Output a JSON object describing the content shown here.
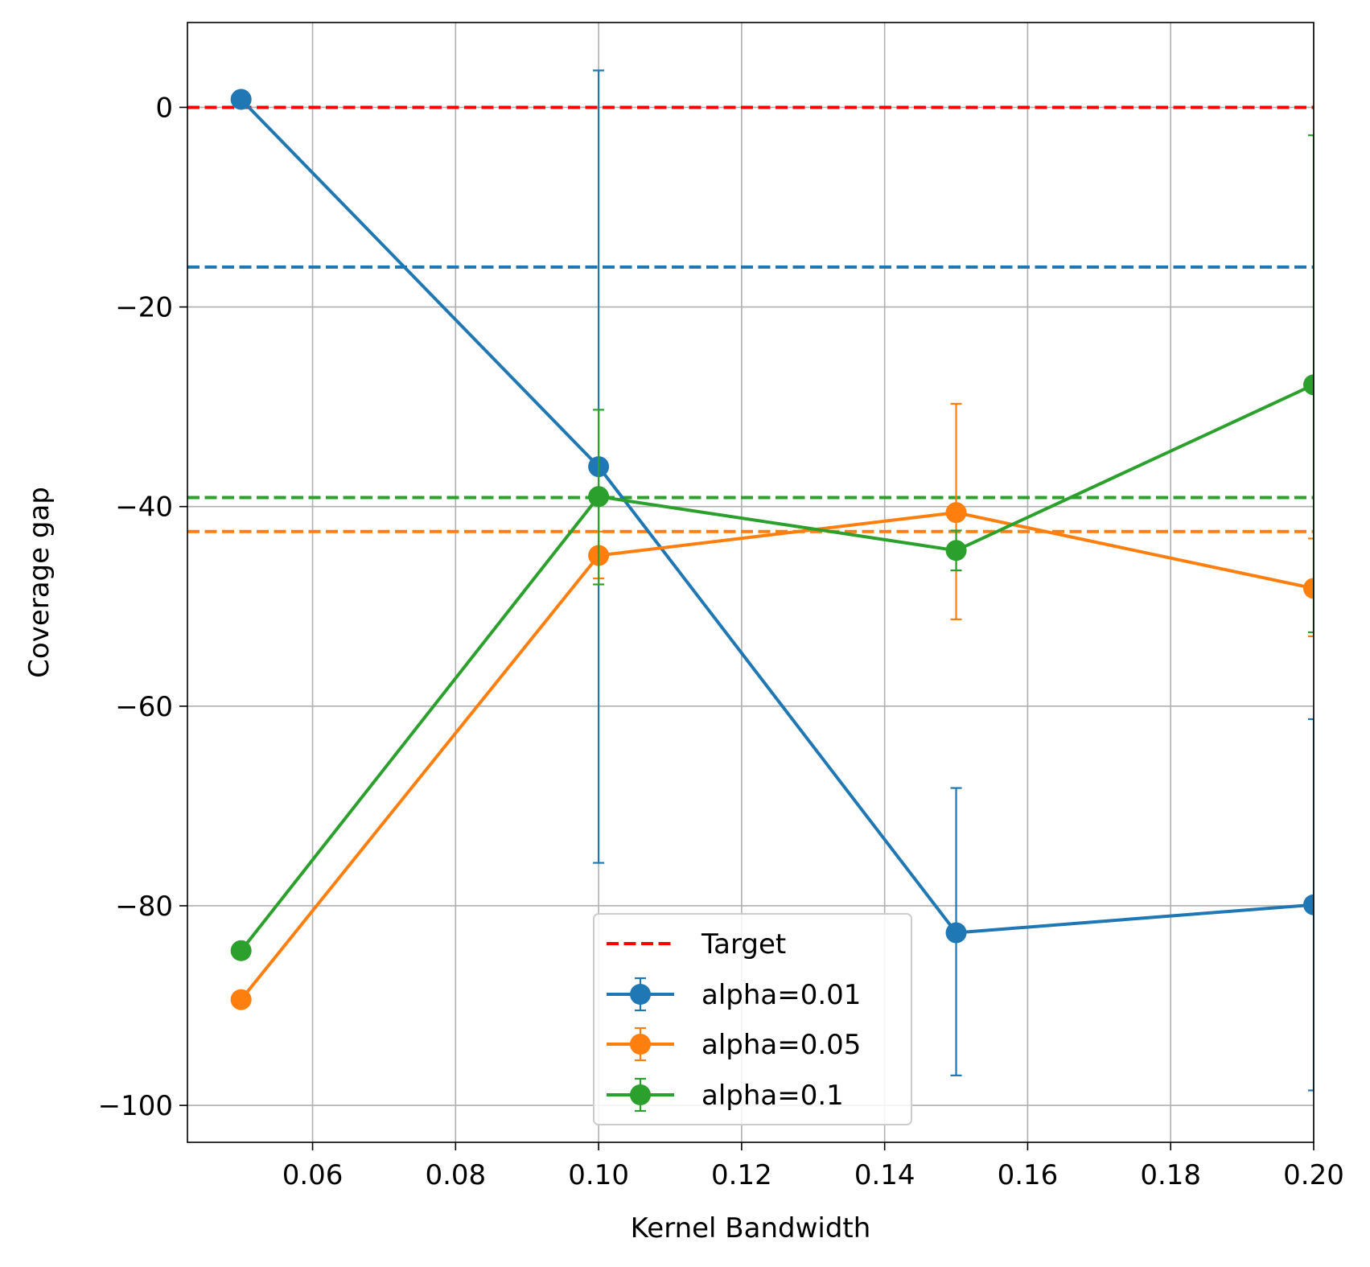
{
  "chart_data": {
    "type": "line",
    "xlabel": "Kernel Bandwidth",
    "ylabel": "Coverage gap",
    "xlim": [
      0.0425,
      0.2
    ],
    "ylim": [
      -103.7,
      8.5
    ],
    "x_ticks": [
      0.06,
      0.08,
      0.1,
      0.12,
      0.14,
      0.16,
      0.18,
      0.2
    ],
    "x_tick_labels": [
      "0.06",
      "0.08",
      "0.10",
      "0.12",
      "0.14",
      "0.16",
      "0.18",
      "0.20"
    ],
    "y_ticks": [
      0,
      -20,
      -40,
      -60,
      -80,
      -100
    ],
    "y_tick_labels": [
      "0",
      "−20",
      "−40",
      "−60",
      "−80",
      "−100"
    ],
    "grid": true,
    "legend_position": "lower center",
    "target": {
      "name": "Target",
      "y": 0,
      "color": "#ff0000"
    },
    "series": [
      {
        "name": "alpha=0.01",
        "color": "#1f77b4",
        "mean_line": -16,
        "x": [
          0.05,
          0.1,
          0.15,
          0.2
        ],
        "y": [
          0.8,
          -36.0,
          -82.7,
          -79.9
        ],
        "err_low": [
          null,
          -75.7,
          -97.0,
          -98.5
        ],
        "err_high": [
          null,
          3.7,
          -68.2,
          -61.3
        ]
      },
      {
        "name": "alpha=0.05",
        "color": "#ff7f0e",
        "mean_line": -42.5,
        "x": [
          0.05,
          0.1,
          0.15,
          0.2
        ],
        "y": [
          -89.4,
          -44.9,
          -40.6,
          -48.2
        ],
        "err_low": [
          null,
          -47.2,
          -51.3,
          -53.0
        ],
        "err_high": [
          null,
          -42.5,
          -29.7,
          -43.2
        ]
      },
      {
        "name": "alpha=0.1",
        "color": "#2ca02c",
        "mean_line": -39.1,
        "x": [
          0.05,
          0.1,
          0.15,
          0.2
        ],
        "y": [
          -84.5,
          -39.0,
          -44.4,
          -27.8
        ],
        "err_low": [
          null,
          -47.8,
          -46.4,
          -52.6
        ],
        "err_high": [
          null,
          -30.3,
          -42.4,
          -2.8
        ]
      }
    ]
  }
}
